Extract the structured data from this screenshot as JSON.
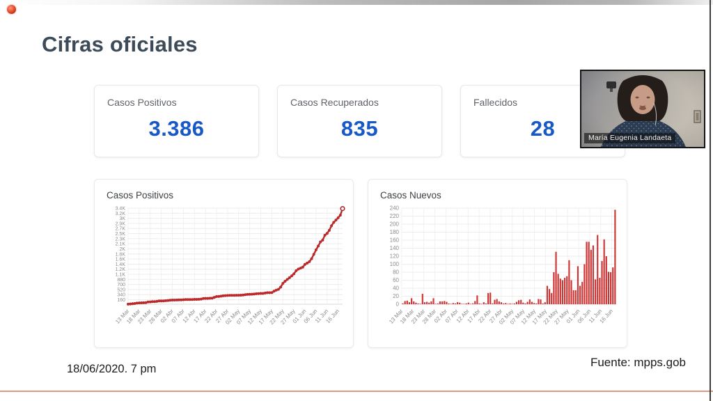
{
  "slide": {
    "title": "Cifras oficiales",
    "date_caption": "18/06/2020. 7 pm",
    "source_caption": "Fuente: mpps.gob",
    "accent_line_color": "#dd9a80"
  },
  "stats": [
    {
      "label": "Casos Positivos",
      "value": "3.386"
    },
    {
      "label": "Casos Recuperados",
      "value": "835"
    },
    {
      "label": "Fallecidos",
      "value": "28"
    }
  ],
  "stat_value_color": "#1759c6",
  "webcam": {
    "participant_name": "María Eugenia Landaeta"
  },
  "chart_data": [
    {
      "type": "line",
      "title": "Casos Positivos",
      "ylim": [
        0,
        3400
      ],
      "grid": true,
      "legend": "none",
      "y_gridline_values": [
        160,
        340,
        520,
        700,
        880,
        1060,
        1240,
        1420,
        1600,
        1780,
        1960,
        2140,
        2320,
        2500,
        2680,
        2860,
        3040,
        3220,
        3400
      ],
      "y_axis_labels": [
        "160",
        "340",
        "520",
        "700",
        "880",
        "1.1K",
        "1.2K",
        "1.4K",
        "1.6K",
        "1.8K",
        "2K",
        "2.1K",
        "2.3K",
        "2.5K",
        "2.7K",
        "2.9K",
        "3K",
        "3.2K",
        "3.4K"
      ],
      "x_tick_labels": [
        "13 Mar",
        "18 Mar",
        "23 Mar",
        "28 Mar",
        "02 Abr",
        "07 Abr",
        "12 Abr",
        "17 Abr",
        "22 Abr",
        "27 Abr",
        "02 May",
        "07 May",
        "12 May",
        "17 May",
        "22 May",
        "27 May",
        "01 Jun",
        "06 Jun",
        "11 Jun",
        "16 Jun"
      ],
      "tick_every": 5,
      "values": [
        2,
        10,
        19,
        24,
        39,
        46,
        50,
        52,
        53,
        79,
        84,
        90,
        94,
        101,
        116,
        117,
        119,
        126,
        133,
        141,
        147,
        149,
        150,
        153,
        155,
        160,
        164,
        165,
        166,
        168,
        172,
        173,
        175,
        183,
        205,
        207,
        208,
        213,
        215,
        243,
        272,
        274,
        285,
        298,
        305,
        310,
        312,
        315,
        316,
        318,
        319,
        321,
        327,
        337,
        348,
        352,
        354,
        360,
        372,
        378,
        381,
        383,
        396,
        408,
        410,
        415,
        461,
        499,
        527,
        607,
        738,
        814,
        878,
        938,
        1004,
        1074,
        1184,
        1244,
        1279,
        1314,
        1409,
        1455,
        1511,
        1611,
        1767,
        1923,
        2059,
        2206,
        2268,
        2441,
        2507,
        2615,
        2777,
        2897,
        2978,
        3058,
        3150,
        3386
      ],
      "line_color": "#b32828",
      "marker_color": "#bb2a2a"
    },
    {
      "type": "bar",
      "title": "Casos Nuevos",
      "ylim": [
        0,
        240
      ],
      "grid": true,
      "legend": "none",
      "y_gridline_values": [
        0,
        20,
        40,
        60,
        80,
        100,
        120,
        140,
        160,
        180,
        200,
        220,
        240
      ],
      "y_axis_labels": [
        "0",
        "20",
        "40",
        "60",
        "80",
        "100",
        "120",
        "140",
        "160",
        "180",
        "200",
        "220",
        "240"
      ],
      "x_tick_labels": [
        "13 Mar",
        "18 Mar",
        "23 Mar",
        "28 Mar",
        "02 Abr",
        "07 Abr",
        "12 Abr",
        "17 Abr",
        "22 Abr",
        "27 Abr",
        "02 May",
        "07 May",
        "12 May",
        "17 May",
        "22 May",
        "27 May",
        "01 Jun",
        "06 Jun",
        "11 Jun",
        "16 Jun"
      ],
      "tick_every": 5,
      "values": [
        2,
        8,
        9,
        5,
        15,
        7,
        4,
        2,
        1,
        26,
        5,
        6,
        4,
        7,
        15,
        1,
        2,
        7,
        7,
        8,
        6,
        2,
        1,
        3,
        2,
        5,
        4,
        1,
        1,
        2,
        4,
        1,
        2,
        8,
        22,
        2,
        1,
        5,
        2,
        28,
        29,
        2,
        11,
        13,
        7,
        5,
        2,
        3,
        1,
        2,
        1,
        2,
        6,
        10,
        11,
        4,
        2,
        6,
        12,
        6,
        3,
        2,
        13,
        12,
        2,
        5,
        46,
        38,
        28,
        80,
        131,
        76,
        64,
        60,
        66,
        70,
        110,
        60,
        35,
        35,
        95,
        46,
        56,
        100,
        156,
        156,
        136,
        147,
        62,
        173,
        66,
        108,
        162,
        120,
        81,
        80,
        92,
        236
      ],
      "bar_color": "#cf3434"
    }
  ],
  "chart_style": {
    "grid_color": "#ececec",
    "vgrid_color": "#f1f1f1",
    "axis_line_color": "#d9d9d9",
    "axis_text_color": "#8a8a8a"
  }
}
